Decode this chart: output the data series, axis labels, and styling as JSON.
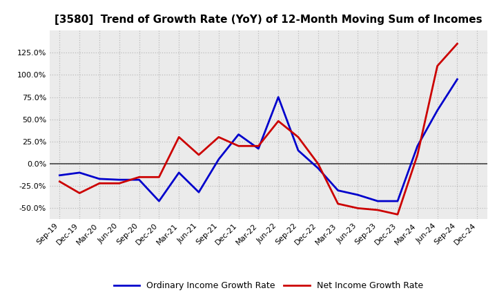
{
  "title": "[3580]  Trend of Growth Rate (YoY) of 12-Month Moving Sum of Incomes",
  "labels": [
    "Sep-19",
    "Dec-19",
    "Mar-20",
    "Jun-20",
    "Sep-20",
    "Dec-20",
    "Mar-21",
    "Jun-21",
    "Sep-21",
    "Dec-21",
    "Mar-22",
    "Jun-22",
    "Sep-22",
    "Dec-22",
    "Mar-23",
    "Jun-23",
    "Sep-23",
    "Dec-23",
    "Mar-24",
    "Jun-24",
    "Sep-24",
    "Dec-24"
  ],
  "ordinary_income": [
    -13,
    -10,
    -17,
    -18,
    -18,
    -42,
    -10,
    -32,
    5,
    33,
    17,
    75,
    15,
    -5,
    -30,
    -35,
    -42,
    -42,
    20,
    60,
    95,
    null
  ],
  "net_income": [
    -20,
    -33,
    -22,
    -22,
    -15,
    -15,
    30,
    10,
    30,
    20,
    20,
    48,
    30,
    0,
    -45,
    -50,
    -52,
    -57,
    10,
    110,
    135,
    null
  ],
  "blue_color": "#0000CC",
  "red_color": "#CC0000",
  "bg_color": "#FFFFFF",
  "plot_bg_color": "#EBEBEB",
  "grid_color": "#BBBBBB",
  "ylim": [
    -62,
    150
  ],
  "yticks": [
    -50,
    -25,
    0,
    25,
    50,
    75,
    100,
    125
  ],
  "legend_ordinary": "Ordinary Income Growth Rate",
  "legend_net": "Net Income Growth Rate",
  "title_fontsize": 11,
  "tick_fontsize": 8,
  "legend_fontsize": 9,
  "linewidth": 2.0
}
